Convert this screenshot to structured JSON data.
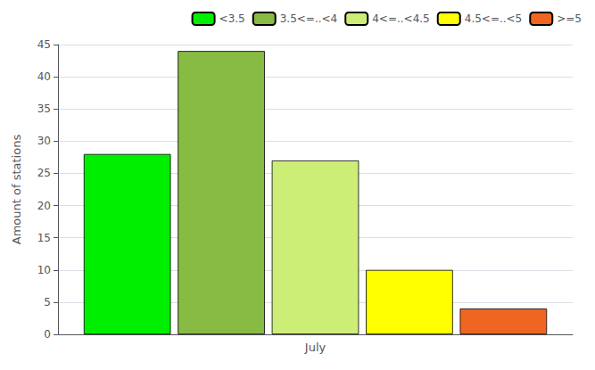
{
  "chart_data": {
    "type": "bar",
    "categories": [
      "July"
    ],
    "series": [
      {
        "name": "<3.5",
        "color": "#00EE00",
        "values": [
          28
        ]
      },
      {
        "name": "3.5<=..<4",
        "color": "#88BB44",
        "values": [
          44
        ]
      },
      {
        "name": "4<=..<4.5",
        "color": "#CCEE77",
        "values": [
          27
        ]
      },
      {
        "name": "4.5<=..<5",
        "color": "#FFFF00",
        "values": [
          10
        ]
      },
      {
        "name": ">=5",
        "color": "#EE6622",
        "values": [
          4
        ]
      }
    ],
    "ylabel": "Amount of stations",
    "ylim": [
      0,
      45
    ],
    "yticks": [
      0,
      5,
      10,
      15,
      20,
      25,
      30,
      35,
      40,
      45
    ],
    "grid": true,
    "legend": "upper right"
  }
}
